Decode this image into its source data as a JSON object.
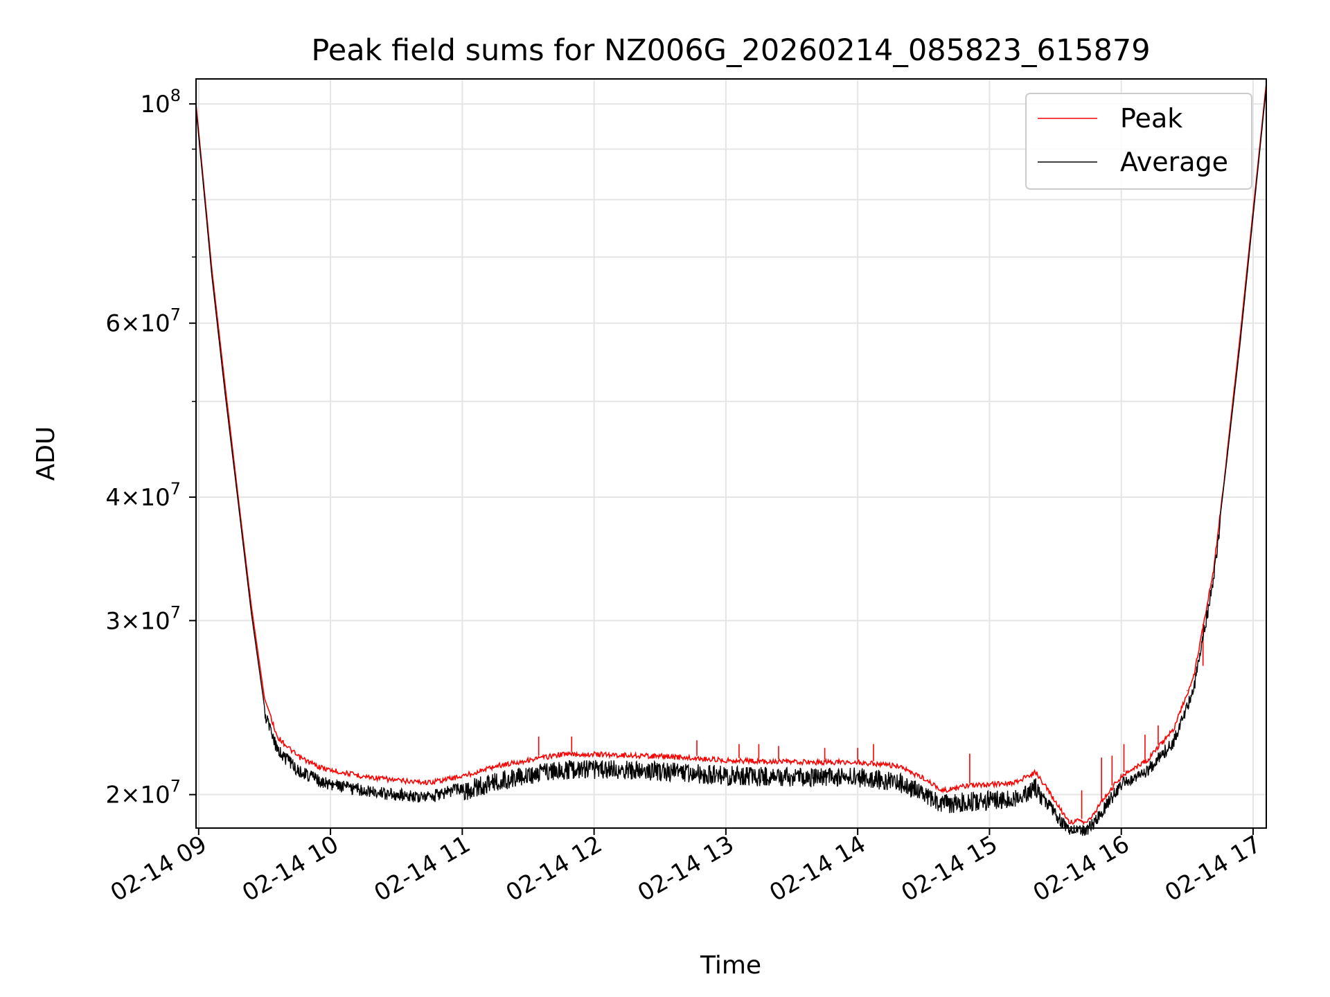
{
  "chart_data": {
    "type": "line",
    "title": "Peak field sums for NZ006G_20260214_085823_615879",
    "xlabel": "Time",
    "ylabel": "ADU",
    "yscale": "log",
    "ylim": [
      18500000,
      106000000
    ],
    "xlim_hours": [
      8.98,
      17.1
    ],
    "grid": true,
    "legend_position": "top-right",
    "x_ticks": [
      {
        "hour": 9,
        "label": "02-14 09"
      },
      {
        "hour": 10,
        "label": "02-14 10"
      },
      {
        "hour": 11,
        "label": "02-14 11"
      },
      {
        "hour": 12,
        "label": "02-14 12"
      },
      {
        "hour": 13,
        "label": "02-14 13"
      },
      {
        "hour": 14,
        "label": "02-14 14"
      },
      {
        "hour": 15,
        "label": "02-14 15"
      },
      {
        "hour": 16,
        "label": "02-14 16"
      },
      {
        "hour": 17,
        "label": "02-14 17"
      }
    ],
    "y_ticks": [
      {
        "value": 100000000,
        "mant": "",
        "base": "10",
        "exp": "8"
      },
      {
        "value": 60000000,
        "mant": "6",
        "base": "10",
        "exp": "7"
      },
      {
        "value": 40000000,
        "mant": "4",
        "base": "10",
        "exp": "7"
      },
      {
        "value": 30000000,
        "mant": "3",
        "base": "10",
        "exp": "7"
      },
      {
        "value": 20000000,
        "mant": "2",
        "base": "10",
        "exp": "7"
      }
    ],
    "y_minor_ticks": [
      50000000,
      70000000,
      80000000,
      90000000
    ],
    "series": [
      {
        "name": "Peak",
        "color": "#ff0000",
        "x_hours": [
          8.98,
          9.05,
          9.1,
          9.2,
          9.3,
          9.4,
          9.5,
          9.6,
          9.75,
          9.9,
          10.0,
          10.25,
          10.5,
          10.75,
          11.0,
          11.25,
          11.5,
          11.75,
          12.0,
          12.5,
          13.0,
          13.5,
          14.0,
          14.3,
          14.5,
          14.65,
          14.8,
          15.0,
          15.2,
          15.35,
          15.5,
          15.6,
          15.75,
          15.85,
          16.0,
          16.2,
          16.4,
          16.55,
          16.7,
          16.8,
          16.9,
          17.0,
          17.1
        ],
        "values": [
          100000000,
          80000000,
          68000000,
          52000000,
          40000000,
          31000000,
          25000000,
          23000000,
          22000000,
          21500000,
          21300000,
          21000000,
          20800000,
          20700000,
          21000000,
          21500000,
          21800000,
          22100000,
          22100000,
          22000000,
          21800000,
          21700000,
          21700000,
          21500000,
          20900000,
          20300000,
          20500000,
          20600000,
          20700000,
          21200000,
          19800000,
          18900000,
          18900000,
          19800000,
          21000000,
          21800000,
          23500000,
          26500000,
          34000000,
          44000000,
          58000000,
          78000000,
          105000000
        ],
        "spikes": [
          {
            "hour": 11.58,
            "value": 22900000
          },
          {
            "hour": 11.83,
            "value": 22900000
          },
          {
            "hour": 12.78,
            "value": 22700000
          },
          {
            "hour": 13.1,
            "value": 22500000
          },
          {
            "hour": 13.25,
            "value": 22500000
          },
          {
            "hour": 13.4,
            "value": 22400000
          },
          {
            "hour": 13.75,
            "value": 22300000
          },
          {
            "hour": 14.0,
            "value": 22300000
          },
          {
            "hour": 14.12,
            "value": 22500000
          },
          {
            "hour": 14.85,
            "value": 22000000
          },
          {
            "hour": 15.7,
            "value": 20200000
          },
          {
            "hour": 15.85,
            "value": 21800000
          },
          {
            "hour": 15.93,
            "value": 21900000
          },
          {
            "hour": 16.02,
            "value": 22500000
          },
          {
            "hour": 16.18,
            "value": 23000000
          },
          {
            "hour": 16.28,
            "value": 23500000
          },
          {
            "hour": 16.5,
            "value": 25500000
          },
          {
            "hour": 16.62,
            "value": 27000000
          }
        ]
      },
      {
        "name": "Average",
        "color": "#000000",
        "x_hours": [
          8.98,
          9.05,
          9.1,
          9.2,
          9.3,
          9.4,
          9.5,
          9.6,
          9.75,
          9.9,
          10.0,
          10.25,
          10.5,
          10.75,
          11.0,
          11.25,
          11.5,
          11.75,
          12.0,
          12.5,
          13.0,
          13.5,
          14.0,
          14.3,
          14.5,
          14.65,
          14.8,
          15.0,
          15.2,
          15.35,
          15.5,
          15.6,
          15.75,
          15.85,
          16.0,
          16.2,
          16.4,
          16.55,
          16.7,
          16.8,
          16.9,
          17.0,
          17.1
        ],
        "values": [
          99000000,
          79000000,
          67000000,
          51000000,
          39500000,
          30500000,
          24500000,
          22500000,
          21500000,
          21000000,
          20800000,
          20500000,
          20300000,
          20200000,
          20600000,
          21100000,
          21400000,
          21700000,
          21700000,
          21600000,
          21400000,
          21300000,
          21300000,
          21100000,
          20500000,
          20000000,
          20100000,
          20200000,
          20300000,
          20800000,
          19400000,
          18700000,
          18700000,
          19500000,
          20800000,
          21500000,
          23000000,
          26000000,
          33500000,
          43500000,
          57000000,
          77000000,
          104000000
        ],
        "noise_band": [
          11.0,
          15.45
        ]
      }
    ]
  }
}
